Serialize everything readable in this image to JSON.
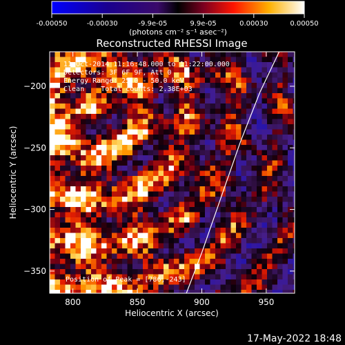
{
  "chart_data": {
    "type": "heatmap",
    "title": "Reconstructed RHESSI Image",
    "xlabel": "Heliocentric X (arcsec)",
    "ylabel": "Heliocentric Y (arcsec)",
    "xlim": [
      782,
      972
    ],
    "ylim": [
      -368,
      -172
    ],
    "xticks": [
      800,
      850,
      900,
      950
    ],
    "yticks": [
      -200,
      -250,
      -300,
      -350
    ],
    "colorbar": {
      "ticks": [
        "-0.00050",
        "-0.00030",
        "-9.9e-05",
        "9.9e-05",
        "0.00030",
        "0.00050"
      ],
      "units": "(photons cm⁻² s⁻¹ asec⁻²)",
      "range": [
        -0.0005,
        0.0005
      ]
    },
    "annotations": [
      "11-Oct-2014 11:16:48.000 to 11:22:00.000",
      "Detectors: 3F 6F 9F, Att 0",
      "Energy Range: 25.0 - 50.0 keV",
      "Clean    Total counts: 2.38E+03"
    ],
    "peak_label": "Position of Peak = [786,-243]",
    "peak": [
      786,
      -243
    ],
    "limb_curve": [
      [
        888,
        -368
      ],
      [
        900,
        -335
      ],
      [
        915,
        -290
      ],
      [
        930,
        -245
      ],
      [
        945,
        -205
      ],
      [
        960,
        -172
      ]
    ]
  },
  "timestamp": "17-May-2022 18:48"
}
